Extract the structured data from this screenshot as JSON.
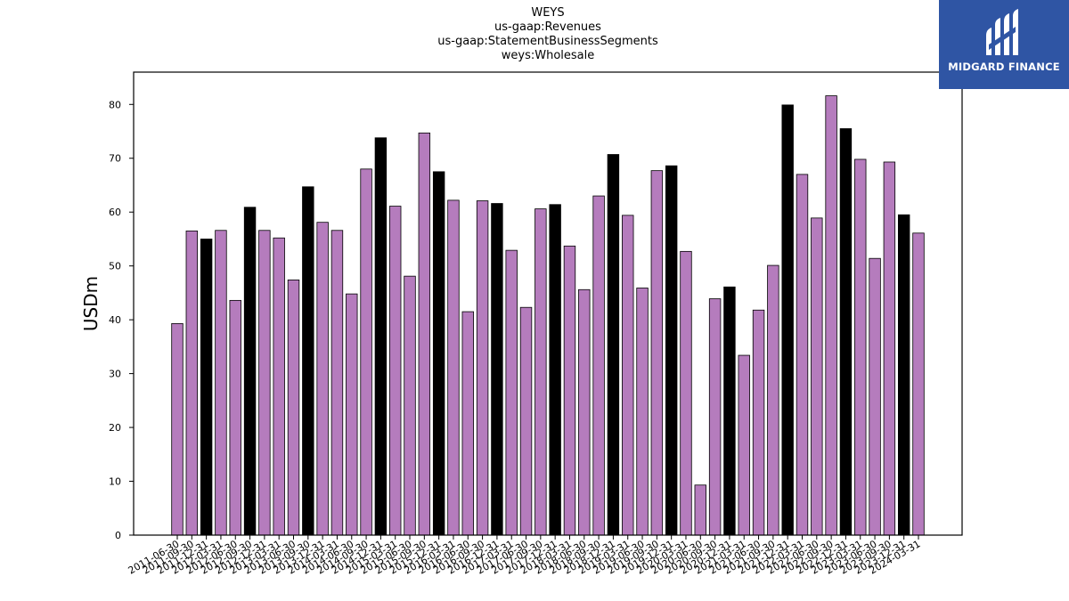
{
  "brand": {
    "name": "MIDGARD FINANCE",
    "logo_color": "#2f55a4"
  },
  "chart_data": {
    "type": "bar",
    "title": [
      "WEYS",
      "us-gaap:Revenues",
      "us-gaap:StatementBusinessSegments",
      "weys:Wholesale"
    ],
    "ylabel": "USDm",
    "xlabel": "",
    "ylim": [
      0,
      86
    ],
    "yticks": [
      0,
      10,
      20,
      30,
      40,
      50,
      60,
      70,
      80
    ],
    "colors": {
      "quarter": "#b57cbd",
      "year_end": "#000000",
      "edge": "#000000"
    },
    "categories": [
      "2011-06-30",
      "2011-09-30",
      "2011-12-31",
      "2012-03-31",
      "2012-06-30",
      "2012-09-30",
      "2012-12-31",
      "2013-03-31",
      "2013-06-30",
      "2013-09-30",
      "2013-12-31",
      "2014-03-31",
      "2014-06-30",
      "2014-09-30",
      "2014-12-31",
      "2015-03-31",
      "2015-06-30",
      "2015-09-30",
      "2015-12-31",
      "2016-03-31",
      "2016-06-30",
      "2016-09-30",
      "2016-12-31",
      "2017-03-31",
      "2017-06-30",
      "2017-09-30",
      "2017-12-31",
      "2018-03-31",
      "2018-06-30",
      "2018-09-30",
      "2018-12-31",
      "2019-03-31",
      "2019-06-30",
      "2019-09-30",
      "2019-12-31",
      "2020-03-31",
      "2020-06-30",
      "2020-09-30",
      "2020-12-31",
      "2021-03-31",
      "2021-06-30",
      "2021-09-30",
      "2021-12-31",
      "2022-03-31",
      "2022-06-30",
      "2022-09-30",
      "2022-12-31",
      "2023-03-31",
      "2023-06-30",
      "2023-09-30",
      "2023-12-31",
      "2024-03-31"
    ],
    "values": [
      39.3,
      56.5,
      55.0,
      56.6,
      43.6,
      60.9,
      56.6,
      55.2,
      47.4,
      64.7,
      58.1,
      56.6,
      44.8,
      68.0,
      73.8,
      61.1,
      48.1,
      74.7,
      67.5,
      62.2,
      41.5,
      62.1,
      61.6,
      52.9,
      42.3,
      60.6,
      61.4,
      53.7,
      45.6,
      63.0,
      70.7,
      59.4,
      45.9,
      67.7,
      68.6,
      52.7,
      9.3,
      43.9,
      46.1,
      33.4,
      41.8,
      50.1,
      79.9,
      67.0,
      58.9,
      81.6,
      75.5,
      69.8,
      51.4,
      69.3,
      59.5,
      56.1
    ],
    "year_end": [
      false,
      false,
      true,
      false,
      false,
      true,
      false,
      false,
      false,
      true,
      false,
      false,
      false,
      false,
      true,
      false,
      false,
      false,
      true,
      false,
      false,
      false,
      true,
      false,
      false,
      false,
      true,
      false,
      false,
      false,
      true,
      false,
      false,
      false,
      true,
      false,
      false,
      false,
      true,
      false,
      false,
      false,
      true,
      false,
      false,
      false,
      true,
      false,
      false,
      false,
      true,
      false
    ],
    "grid": false,
    "legend": "none"
  }
}
